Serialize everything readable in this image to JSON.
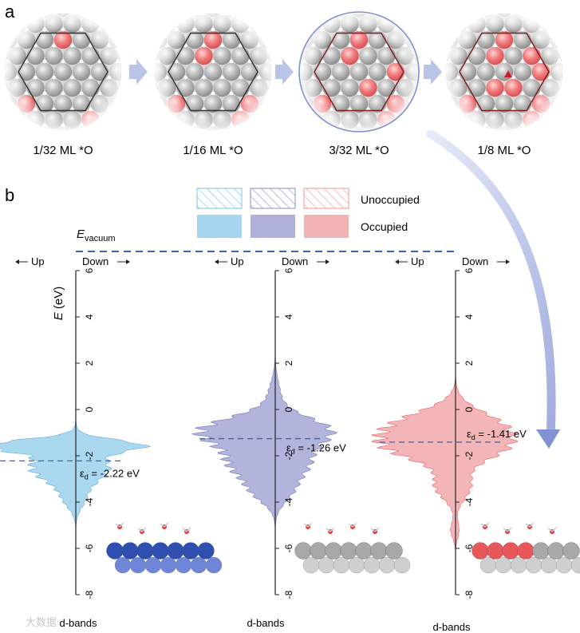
{
  "panel_a": {
    "label": "a",
    "arrow_color": "#b9c4e6",
    "steps": [
      {
        "label": "1/32 ML *O",
        "o_count": 4,
        "highlighted": false
      },
      {
        "label": "1/16 ML *O",
        "o_count": 6,
        "highlighted": false
      },
      {
        "label": "3/32 ML *O",
        "o_count": 8,
        "highlighted": true
      },
      {
        "label": "1/8 ML *O",
        "o_count": 10,
        "highlighted": false
      }
    ]
  },
  "panel_b": {
    "label": "b",
    "legend": {
      "unoccupied_label": "Unoccupied",
      "occupied_label": "Occupied",
      "swatches": [
        {
          "name": "blue",
          "color": "#a6d6ef",
          "hatch": "#7cc1e4"
        },
        {
          "name": "purple",
          "color": "#aeb1da",
          "hatch": "#8a8fc8"
        },
        {
          "name": "red",
          "color": "#f3b2b4",
          "hatch": "#ef9498"
        }
      ]
    },
    "evacuum": {
      "symbol": "E",
      "subscript": "vacuum",
      "color": "#3a64b0"
    },
    "axis": {
      "label_symbol": "E",
      "label_unit": " (eV)",
      "ticks": [
        6,
        4,
        2,
        0,
        -2,
        -4,
        -6,
        -8
      ],
      "range": [
        -8,
        6
      ],
      "up_label": "Up",
      "down_label": "Down"
    },
    "dos_panels": [
      {
        "name": "blue",
        "color": "#a6d6ef",
        "line": "#5fa9d4",
        "ed_value": -2.22,
        "ed_symbol": "ε",
        "ed_sub": "d",
        "ed_text": " = -2.22 eV",
        "bands_label": "d-bands",
        "slab_top": "#2f4fb0",
        "slab_bottom": "#6f86d8",
        "top_colors": [
          "#2f4fb0",
          "#2f4fb0",
          "#2f4fb0",
          "#2f4fb0",
          "#2f4fb0",
          "#2f4fb0",
          "#2f4fb0"
        ]
      },
      {
        "name": "purple",
        "color": "#aeb1da",
        "line": "#6c71b6",
        "ed_value": -1.26,
        "ed_symbol": "ε",
        "ed_sub": "d",
        "ed_text": " = -1.26 eV",
        "bands_label": "d-bands",
        "slab_top": "#a8a8a8",
        "slab_bottom": "#cfcfcf",
        "top_colors": [
          "#a8a8a8",
          "#a8a8a8",
          "#a8a8a8",
          "#a8a8a8",
          "#a8a8a8",
          "#a8a8a8",
          "#a8a8a8"
        ]
      },
      {
        "name": "red",
        "color": "#f3b2b4",
        "line": "#e5585d",
        "ed_value": -1.41,
        "ed_symbol": "ε",
        "ed_sub": "d",
        "ed_text": " = -1.41 eV",
        "bands_label": "d-bands",
        "slab_top": "#a8a8a8",
        "slab_bottom": "#cfcfcf",
        "top_colors": [
          "#e8585b",
          "#e8585b",
          "#e8585b",
          "#e8585b",
          "#a8a8a8",
          "#a8a8a8",
          "#a8a8a8"
        ]
      }
    ]
  },
  "watermark": "大数据"
}
